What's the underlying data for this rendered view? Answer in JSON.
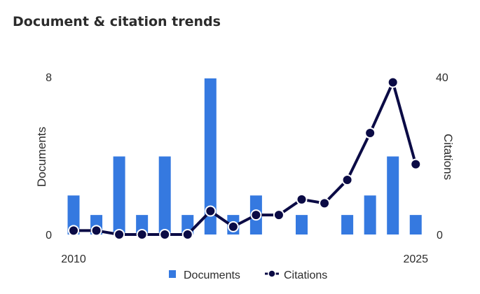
{
  "page_title": "Document & citation trends",
  "chart_data": {
    "type": "bar",
    "x": [
      2010,
      2011,
      2012,
      2013,
      2014,
      2015,
      2016,
      2017,
      2018,
      2019,
      2020,
      2021,
      2022,
      2023,
      2024,
      2025
    ],
    "x_tick_labels": [
      "2010",
      "2025"
    ],
    "series": [
      {
        "name": "Documents",
        "type": "bar",
        "axis": "left",
        "color": "#3579e0",
        "values": [
          2,
          1,
          4,
          1,
          4,
          1,
          8,
          1,
          2,
          0,
          1,
          0,
          1,
          2,
          4,
          1
        ]
      },
      {
        "name": "Citations",
        "type": "line",
        "axis": "right",
        "color": "#0b0b45",
        "values": [
          1,
          1,
          0,
          0,
          0,
          0,
          6,
          2,
          5,
          5,
          9,
          8,
          14,
          26,
          39,
          18
        ]
      }
    ],
    "y_left": {
      "label": "Documents",
      "ylim": [
        0,
        8
      ],
      "ticks": [
        "0",
        "8"
      ]
    },
    "y_right": {
      "label": "Citations",
      "ylim": [
        0,
        40
      ],
      "ticks": [
        "0",
        "40"
      ]
    },
    "legend_position": "bottom",
    "grid": false
  }
}
